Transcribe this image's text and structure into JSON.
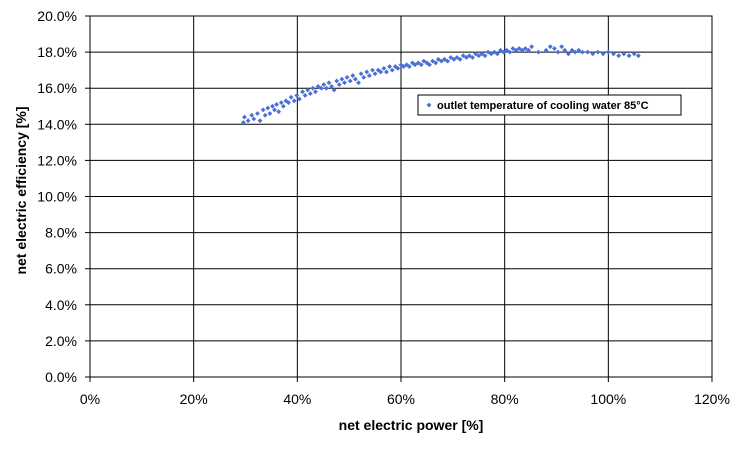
{
  "chart_data": {
    "type": "scatter",
    "xlabel": "net electric power [%]",
    "ylabel": "net electric efficiency [%]",
    "xlim": [
      0,
      120
    ],
    "ylim": [
      0,
      20
    ],
    "x_ticks": [
      "0%",
      "20%",
      "40%",
      "60%",
      "80%",
      "100%",
      "120%"
    ],
    "y_ticks": [
      "0.0%",
      "2.0%",
      "4.0%",
      "6.0%",
      "8.0%",
      "10.0%",
      "12.0%",
      "14.0%",
      "16.0%",
      "18.0%",
      "20.0%"
    ],
    "grid": true,
    "legend_position": "right, inside plot upper area",
    "colors": {
      "marker": "#4a6fd6",
      "grid": "#000000",
      "background": "#ffffff"
    },
    "series": [
      {
        "name": "outlet temperature of cooling water 85°C",
        "points": [
          [
            29.6,
            14.1
          ],
          [
            29.8,
            14.4
          ],
          [
            30.5,
            14.2
          ],
          [
            31.2,
            14.5
          ],
          [
            31.6,
            14.3
          ],
          [
            32.3,
            14.6
          ],
          [
            32.8,
            14.2
          ],
          [
            33.4,
            14.8
          ],
          [
            33.8,
            14.5
          ],
          [
            34.3,
            14.9
          ],
          [
            34.7,
            14.6
          ],
          [
            35.2,
            15.0
          ],
          [
            35.6,
            14.8
          ],
          [
            36.0,
            15.1
          ],
          [
            36.4,
            14.7
          ],
          [
            36.9,
            15.2
          ],
          [
            37.3,
            15.0
          ],
          [
            37.8,
            15.3
          ],
          [
            38.3,
            15.2
          ],
          [
            38.8,
            15.5
          ],
          [
            39.4,
            15.3
          ],
          [
            39.9,
            15.6
          ],
          [
            40.4,
            15.4
          ],
          [
            41.0,
            15.8
          ],
          [
            41.5,
            15.6
          ],
          [
            42.0,
            15.9
          ],
          [
            42.5,
            15.7
          ],
          [
            43.0,
            16.0
          ],
          [
            43.5,
            15.8
          ],
          [
            44.0,
            16.1
          ],
          [
            44.6,
            16.0
          ],
          [
            45.1,
            16.2
          ],
          [
            45.6,
            16.0
          ],
          [
            46.1,
            16.3
          ],
          [
            46.6,
            16.1
          ],
          [
            47.1,
            15.9
          ],
          [
            47.6,
            16.4
          ],
          [
            48.1,
            16.2
          ],
          [
            48.6,
            16.5
          ],
          [
            49.1,
            16.3
          ],
          [
            49.6,
            16.6
          ],
          [
            50.2,
            16.4
          ],
          [
            50.7,
            16.7
          ],
          [
            51.2,
            16.5
          ],
          [
            51.8,
            16.3
          ],
          [
            52.3,
            16.8
          ],
          [
            52.8,
            16.6
          ],
          [
            53.4,
            16.9
          ],
          [
            53.9,
            16.7
          ],
          [
            54.5,
            17.0
          ],
          [
            55.0,
            16.8
          ],
          [
            55.6,
            17.0
          ],
          [
            56.1,
            16.9
          ],
          [
            56.7,
            17.1
          ],
          [
            57.2,
            16.9
          ],
          [
            57.8,
            17.2
          ],
          [
            58.3,
            17.0
          ],
          [
            58.9,
            17.2
          ],
          [
            59.4,
            17.1
          ],
          [
            60.0,
            17.3
          ],
          [
            60.5,
            17.2
          ],
          [
            61.1,
            17.3
          ],
          [
            61.6,
            17.2
          ],
          [
            62.2,
            17.4
          ],
          [
            62.7,
            17.3
          ],
          [
            63.3,
            17.4
          ],
          [
            63.9,
            17.3
          ],
          [
            64.4,
            17.5
          ],
          [
            65.0,
            17.4
          ],
          [
            65.5,
            17.3
          ],
          [
            66.1,
            17.5
          ],
          [
            66.7,
            17.4
          ],
          [
            67.2,
            17.6
          ],
          [
            67.8,
            17.5
          ],
          [
            68.4,
            17.6
          ],
          [
            69.0,
            17.5
          ],
          [
            69.6,
            17.7
          ],
          [
            70.2,
            17.6
          ],
          [
            70.8,
            17.7
          ],
          [
            71.4,
            17.6
          ],
          [
            72.0,
            17.8
          ],
          [
            72.6,
            17.7
          ],
          [
            73.2,
            17.8
          ],
          [
            73.8,
            17.7
          ],
          [
            74.4,
            17.9
          ],
          [
            75.0,
            17.8
          ],
          [
            75.6,
            17.9
          ],
          [
            76.2,
            17.8
          ],
          [
            76.8,
            18.0
          ],
          [
            77.4,
            17.9
          ],
          [
            78.0,
            18.0
          ],
          [
            78.6,
            17.9
          ],
          [
            79.2,
            18.1
          ],
          [
            79.8,
            18.0
          ],
          [
            80.4,
            18.1
          ],
          [
            81.0,
            18.0
          ],
          [
            81.6,
            18.2
          ],
          [
            82.2,
            18.1
          ],
          [
            82.8,
            18.2
          ],
          [
            83.4,
            18.1
          ],
          [
            84.0,
            18.2
          ],
          [
            84.6,
            18.1
          ],
          [
            85.2,
            18.3
          ],
          [
            86.5,
            18.0
          ],
          [
            88.0,
            18.1
          ],
          [
            88.8,
            18.3
          ],
          [
            89.6,
            18.2
          ],
          [
            90.3,
            18.0
          ],
          [
            91.0,
            18.3
          ],
          [
            91.6,
            18.1
          ],
          [
            92.3,
            17.9
          ],
          [
            93.0,
            18.1
          ],
          [
            93.6,
            18.0
          ],
          [
            94.3,
            18.1
          ],
          [
            95.0,
            18.0
          ],
          [
            96.0,
            18.0
          ],
          [
            97.0,
            17.9
          ],
          [
            98.0,
            18.0
          ],
          [
            99.0,
            17.9
          ],
          [
            100.0,
            18.0
          ],
          [
            101.0,
            17.9
          ],
          [
            102.0,
            17.8
          ],
          [
            103.0,
            17.9
          ],
          [
            104.0,
            17.8
          ],
          [
            105.0,
            17.9
          ],
          [
            105.8,
            17.8
          ]
        ]
      }
    ]
  }
}
